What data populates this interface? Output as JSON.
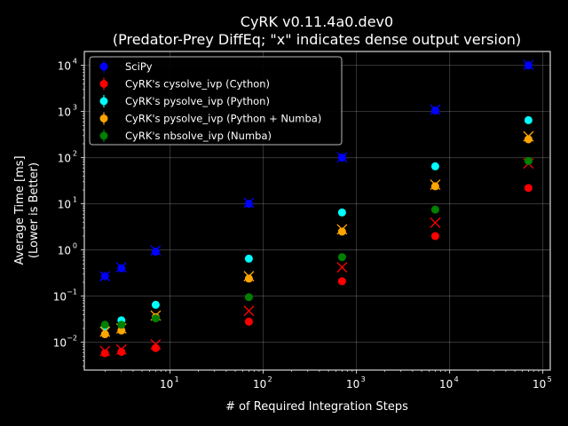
{
  "chart_data": {
    "type": "scatter",
    "title": "CyRK v0.11.4a0.dev0",
    "subtitle": "(Predator-Prey DiffEq; \"x\" indicates dense output version)",
    "xlabel": "# of Required Integration Steps",
    "ylabel": "Average Time [ms]",
    "ylabel2": "(Lower is Better)",
    "x_scale": "log",
    "y_scale": "log",
    "xlim": [
      1.2,
      120000
    ],
    "ylim": [
      0.0025,
      20000
    ],
    "x_ticks": [
      {
        "base": "10",
        "exp": "1",
        "value": 10
      },
      {
        "base": "10",
        "exp": "2",
        "value": 100
      },
      {
        "base": "10",
        "exp": "3",
        "value": 1000
      },
      {
        "base": "10",
        "exp": "4",
        "value": 10000
      },
      {
        "base": "10",
        "exp": "5",
        "value": 100000
      }
    ],
    "y_ticks": [
      {
        "base": "10",
        "exp": "−2",
        "value": 0.01
      },
      {
        "base": "10",
        "exp": "−1",
        "value": 0.1
      },
      {
        "base": "10",
        "exp": "0",
        "value": 1
      },
      {
        "base": "10",
        "exp": "1",
        "value": 10
      },
      {
        "base": "10",
        "exp": "2",
        "value": 100
      },
      {
        "base": "10",
        "exp": "3",
        "value": 1000
      },
      {
        "base": "10",
        "exp": "4",
        "value": 10000
      }
    ],
    "grid": true,
    "legend_position": "top-left",
    "x": [
      2,
      3,
      7,
      70,
      700,
      7000,
      70000
    ],
    "series": [
      {
        "name": "SciPy",
        "color": "#0000ff",
        "values": [
          0.27,
          0.4,
          0.92,
          10,
          100,
          1050,
          10000
        ],
        "dense_values": [
          0.27,
          0.42,
          0.98,
          10.5,
          102,
          1100,
          10200
        ]
      },
      {
        "name": "CyRK's cysolve_ivp (Cython)",
        "color": "#ff0000",
        "values": [
          0.0058,
          0.0062,
          0.0075,
          0.028,
          0.21,
          2.0,
          22
        ],
        "dense_values": [
          0.0065,
          0.007,
          0.009,
          0.048,
          0.42,
          3.9,
          75
        ]
      },
      {
        "name": "CyRK's pysolve_ivp (Python)",
        "color": "#00ffff",
        "values": [
          0.022,
          0.03,
          0.065,
          0.65,
          6.5,
          65,
          650
        ],
        "dense_values": []
      },
      {
        "name": "CyRK's pysolve_ivp (Python + Numba)",
        "color": "#ffa500",
        "values": [
          0.015,
          0.018,
          0.035,
          0.24,
          2.5,
          24,
          250
        ],
        "dense_values": [
          0.017,
          0.02,
          0.038,
          0.27,
          2.8,
          26,
          290
        ]
      },
      {
        "name": "CyRK's nbsolve_ivp (Numba)",
        "color": "#008000",
        "values": [
          0.024,
          0.024,
          0.033,
          0.095,
          0.7,
          7.5,
          85
        ],
        "dense_values": []
      }
    ]
  }
}
